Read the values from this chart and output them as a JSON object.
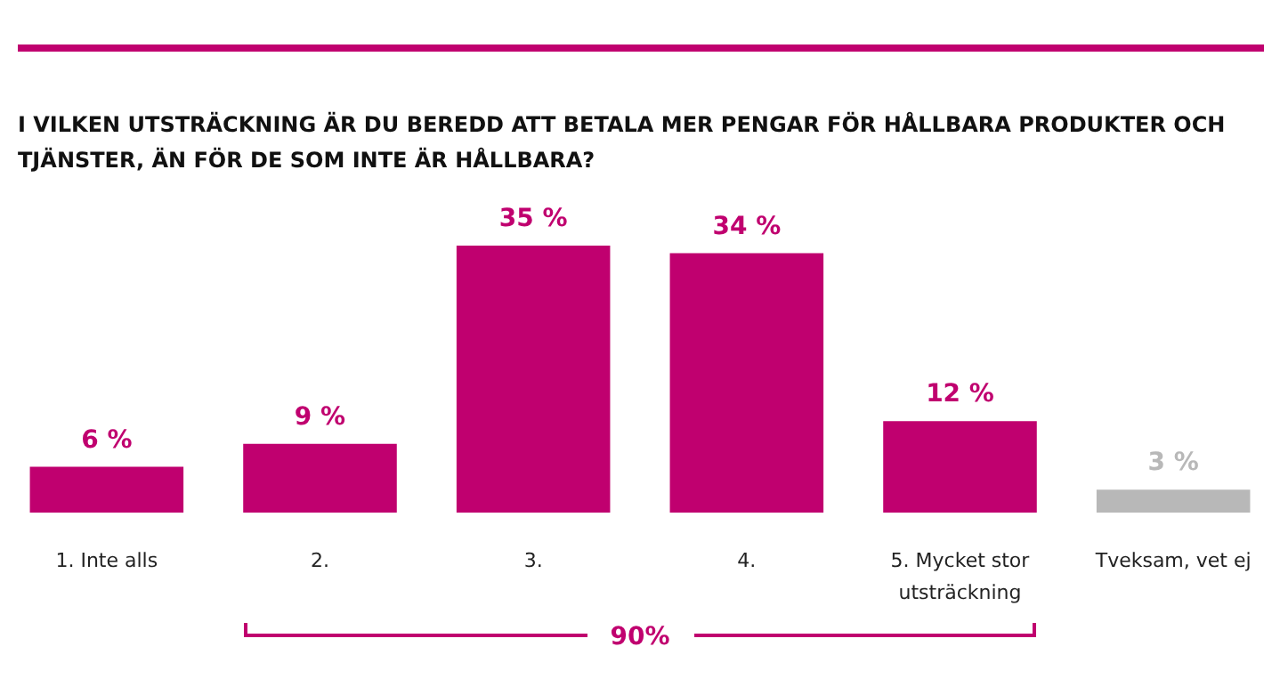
{
  "chart_data": {
    "type": "bar",
    "title": "I VILKEN UTSTRÄCKNING ÄR DU BEREDD ATT BETALA MER PENGAR FÖR HÅLLBARA PRODUKTER OCH TJÄNSTER, ÄN FÖR DE SOM INTE ÄR HÅLLBARA?",
    "categories": [
      "1. Inte alls",
      "2.",
      "3.",
      "4.",
      "5. Mycket stor\nutsträckning",
      "Tveksam, vet ej"
    ],
    "values": [
      6,
      9,
      35,
      34,
      12,
      3
    ],
    "colors": [
      "#c0006f",
      "#c0006f",
      "#c0006f",
      "#c0006f",
      "#c0006f",
      "#b8b8b8"
    ],
    "value_labels": [
      "6 %",
      "9 %",
      "35 %",
      "34 %",
      "12 %",
      "3 %"
    ],
    "annotations": [
      "90%"
    ]
  }
}
